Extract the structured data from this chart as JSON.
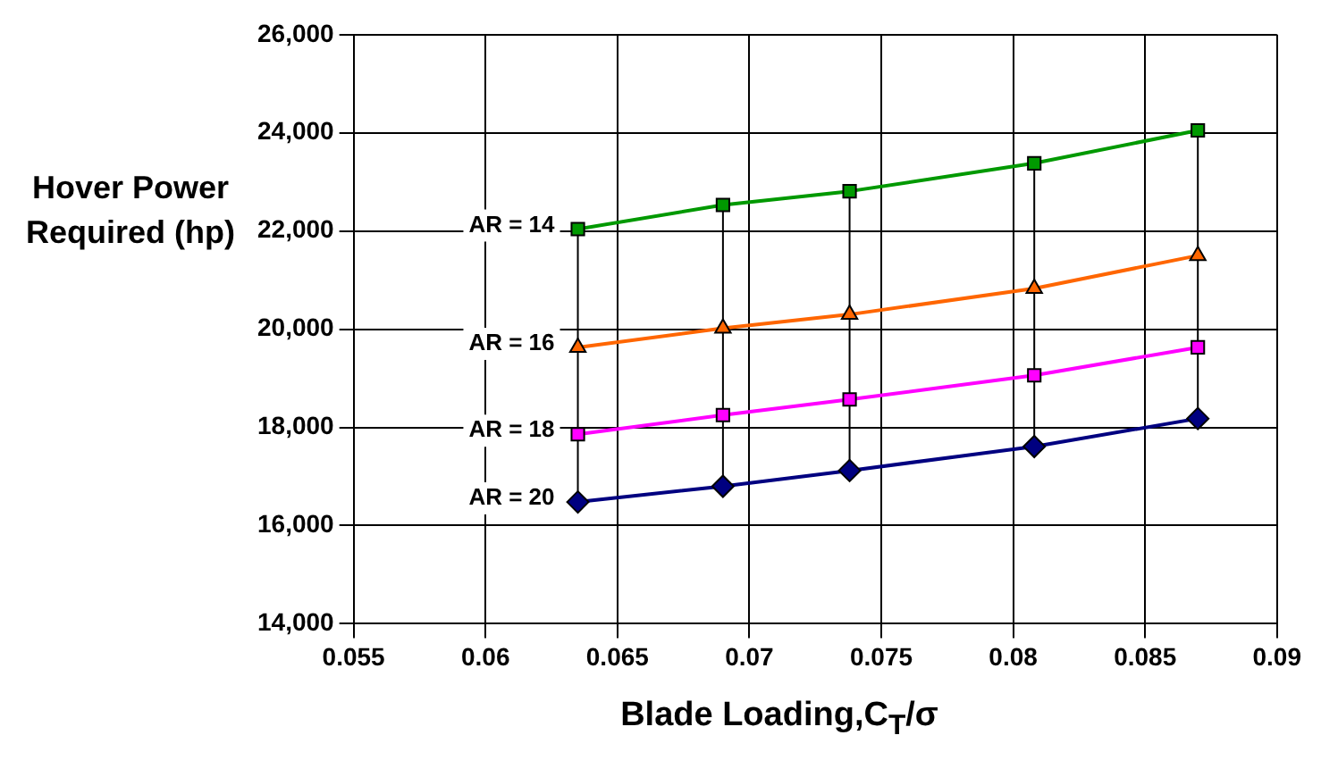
{
  "chart_data": {
    "type": "line",
    "xlabel": "Blade Loading,C$_{T}$/σ",
    "ylabel": "Hover Power Required (hp)",
    "xlim": [
      0.055,
      0.09
    ],
    "xticks": [
      0.055,
      0.06,
      0.065,
      0.07,
      0.075,
      0.08,
      0.085,
      0.09
    ],
    "ylim": [
      14000,
      26000
    ],
    "yticks": [
      {
        "value": 14000,
        "label": "14,000"
      },
      {
        "value": 16000,
        "label": "16,000"
      },
      {
        "value": 18000,
        "label": "18,000"
      },
      {
        "value": 20000,
        "label": "20,000"
      },
      {
        "value": 22000,
        "label": "22,000"
      },
      {
        "value": 24000,
        "label": "24,000"
      },
      {
        "value": 26000,
        "label": "26,000"
      }
    ],
    "grid": true,
    "legend": false,
    "series": [
      {
        "name": "AR = 14",
        "x": [
          0.0635,
          0.069,
          0.0738,
          0.0808,
          0.087
        ],
        "values": [
          22040,
          22530,
          22810,
          23380,
          24050
        ],
        "color": "#009900",
        "marker": "square"
      },
      {
        "name": "AR = 16",
        "x": [
          0.0635,
          0.069,
          0.0738,
          0.0808,
          0.087
        ],
        "values": [
          19630,
          20020,
          20300,
          20830,
          21500
        ],
        "color": "#ff6600",
        "marker": "triangle"
      },
      {
        "name": "AR = 18",
        "x": [
          0.0635,
          0.069,
          0.0738,
          0.0808,
          0.087
        ],
        "values": [
          17860,
          18250,
          18570,
          19060,
          19630
        ],
        "color": "#ff00ff",
        "marker": "square"
      },
      {
        "name": "AR = 20",
        "x": [
          0.0635,
          0.069,
          0.0738,
          0.0808,
          0.087
        ],
        "values": [
          16480,
          16800,
          17120,
          17610,
          18180
        ],
        "color": "#000080",
        "marker": "diamond"
      },
      {
        "x": [
          0.0635,
          0.0635
        ],
        "values": [
          16480,
          22040
        ],
        "color": "#000000",
        "marker": "none"
      },
      {
        "x": [
          0.069,
          0.069
        ],
        "values": [
          16800,
          22530
        ],
        "color": "#000000",
        "marker": "none"
      },
      {
        "x": [
          0.0738,
          0.0738
        ],
        "values": [
          17120,
          22810
        ],
        "color": "#000000",
        "marker": "none"
      },
      {
        "x": [
          0.0808,
          0.0808
        ],
        "values": [
          17610,
          23380
        ],
        "color": "#000000",
        "marker": "none"
      },
      {
        "x": [
          0.087,
          0.087
        ],
        "values": [
          18180,
          24050
        ],
        "color": "#000000",
        "marker": "none"
      }
    ]
  }
}
